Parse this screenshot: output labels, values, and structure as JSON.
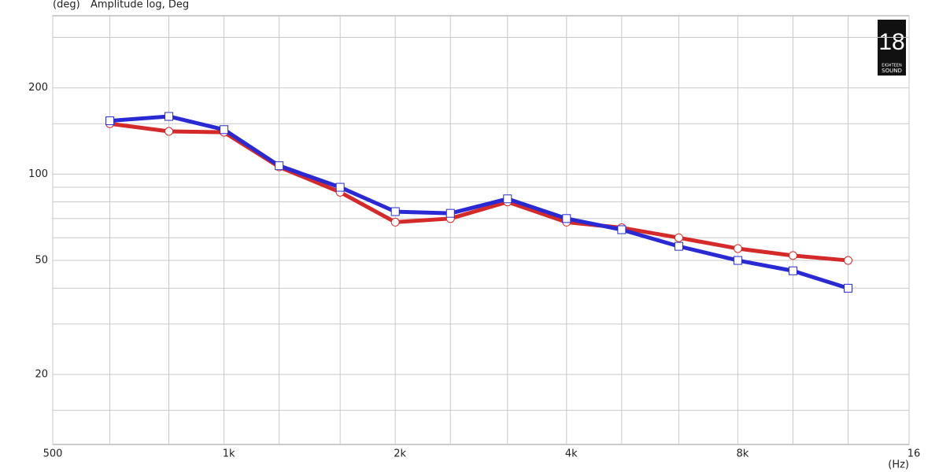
{
  "chart_data": {
    "type": "line",
    "title": "Amplitude log, Deg",
    "y_label": "(deg)",
    "x_label": "(Hz)",
    "logo": {
      "number": "18",
      "line1": "EIGHTEEN",
      "line2": "SOUND"
    },
    "x_scale": "log",
    "y_scale": "log",
    "grid": true,
    "xlim": [
      500,
      16000
    ],
    "ylim": [
      11.4,
      357
    ],
    "xticks": [
      500,
      {
        "value": 1000,
        "label": "1k"
      },
      {
        "value": 2000,
        "label": "2k"
      },
      {
        "value": 4000,
        "label": "4k"
      },
      {
        "value": 8000,
        "label": "8k"
      },
      {
        "value": 16000,
        "label": "16"
      }
    ],
    "yticks": [
      20,
      50,
      100,
      200
    ],
    "x_gridlines": [
      630,
      800,
      1250,
      1600,
      2500,
      3150,
      5000,
      6300,
      10000,
      12500
    ],
    "y_gridlines": [
      15,
      30,
      40,
      60,
      70,
      80,
      90,
      150,
      300
    ],
    "x": [
      630,
      800,
      1000,
      1250,
      1600,
      2000,
      2500,
      3150,
      4000,
      5000,
      6300,
      8000,
      10000,
      12500
    ],
    "series": [
      {
        "color": "#d42a2a",
        "marker": "circle",
        "values": [
          150,
          141,
          140,
          106,
          86.5,
          68,
          70,
          80,
          68,
          65,
          60,
          55,
          52,
          50
        ]
      },
      {
        "color": "#2a2ad4",
        "marker": "square",
        "values": [
          153.5,
          159,
          143,
          107,
          90,
          74,
          73,
          82,
          70,
          64,
          56,
          50,
          46,
          40
        ]
      }
    ]
  }
}
